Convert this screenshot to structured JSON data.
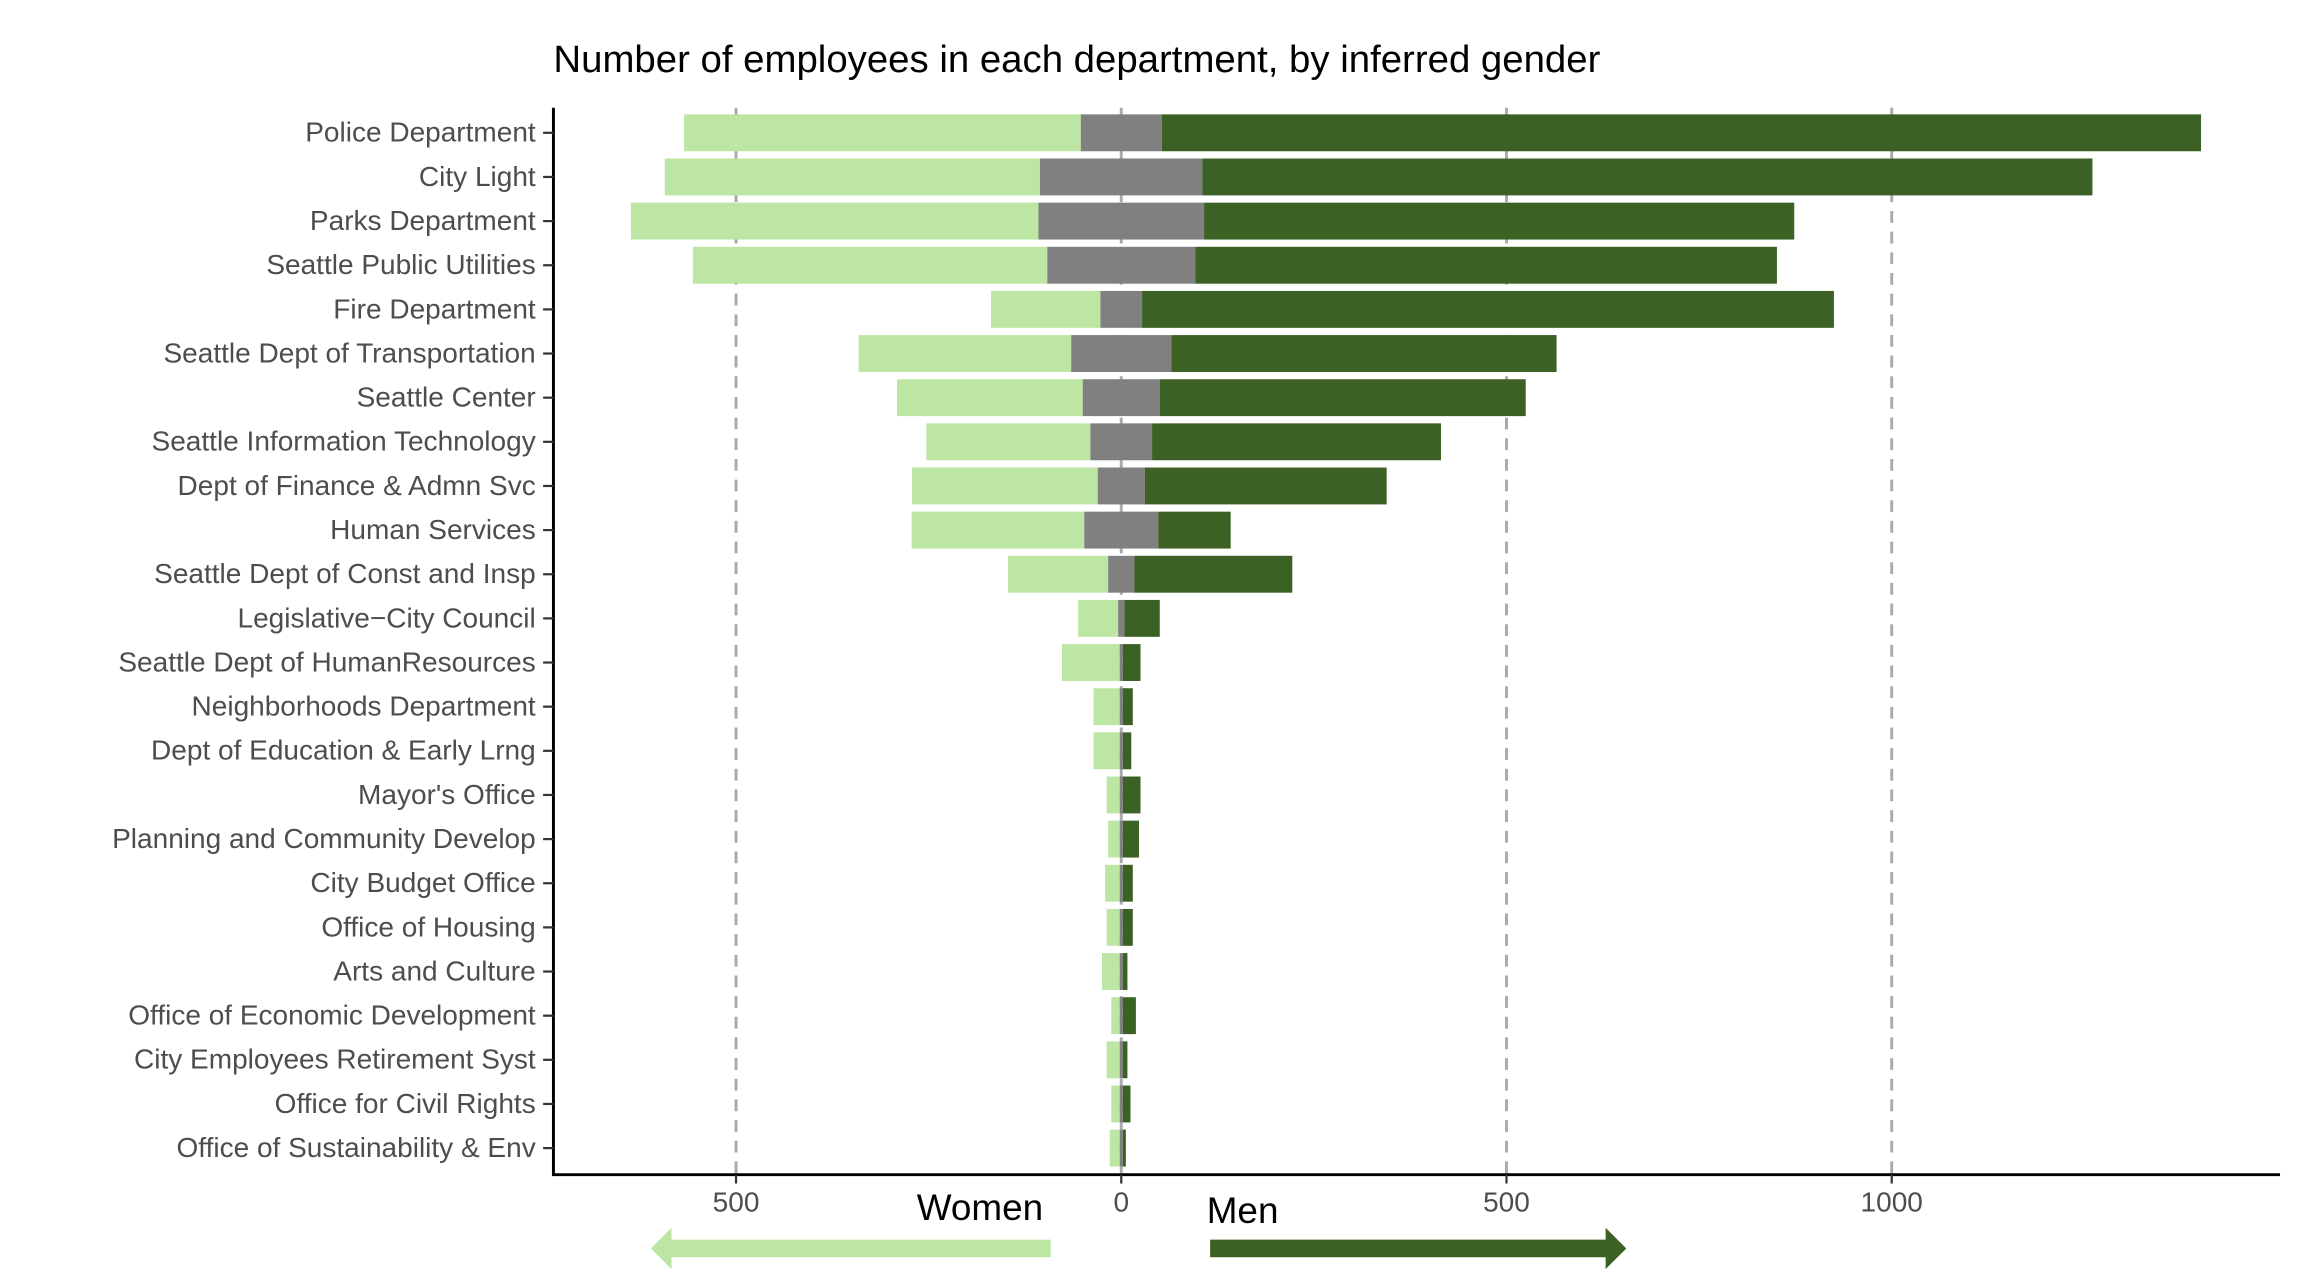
{
  "chart_data": {
    "type": "diverging-bar",
    "title": "Number of employees in each department, by inferred gender",
    "categories": [
      "Police Department",
      "City Light",
      "Parks Department",
      "Seattle Public Utilities",
      "Fire Department",
      "Seattle Dept of Transportation",
      "Seattle Center",
      "Seattle Information Technology",
      "Dept of Finance & Admn Svc",
      "Human Services",
      "Seattle Dept of Const and Insp",
      "Legislative−City Council",
      "Seattle Dept of HumanResources",
      "Neighborhoods Department",
      "Dept of Education & Early Lrng",
      "Mayor's Office",
      "Planning and Community Develop",
      "City Budget Office",
      "Office of Housing",
      "Arts and Culture",
      "Office of Economic Development",
      "City Employees Retirement Syst",
      "Office for Civil Rights",
      "Office of Sustainability & Env"
    ],
    "series": [
      {
        "name": "Women",
        "color": "#bde6a5",
        "values": [
          515,
          487,
          529,
          460,
          142,
          276,
          241,
          213,
          241,
          224,
          130,
          52,
          75,
          34,
          34,
          17,
          15,
          19,
          17,
          23,
          11,
          17,
          11,
          13
        ]
      },
      {
        "color": "#808080",
        "values": [
          105,
          211,
          215,
          192,
          54,
          130,
          100,
          80,
          61,
          96,
          34,
          8,
          4,
          4,
          4,
          4,
          4,
          4,
          4,
          4,
          4,
          4,
          4,
          4
        ]
      },
      {
        "name": "Men",
        "color": "#3c6124",
        "values": [
          1349,
          1155,
          766,
          755,
          898,
          500,
          475,
          375,
          314,
          94,
          205,
          46,
          23,
          13,
          11,
          23,
          21,
          13,
          13,
          6,
          17,
          6,
          10,
          4
        ]
      }
    ],
    "xlim": [
      -737,
      1504
    ],
    "xticks": [
      {
        "value": -500,
        "label": "500"
      },
      0,
      500,
      1000
    ],
    "grid": true
  }
}
